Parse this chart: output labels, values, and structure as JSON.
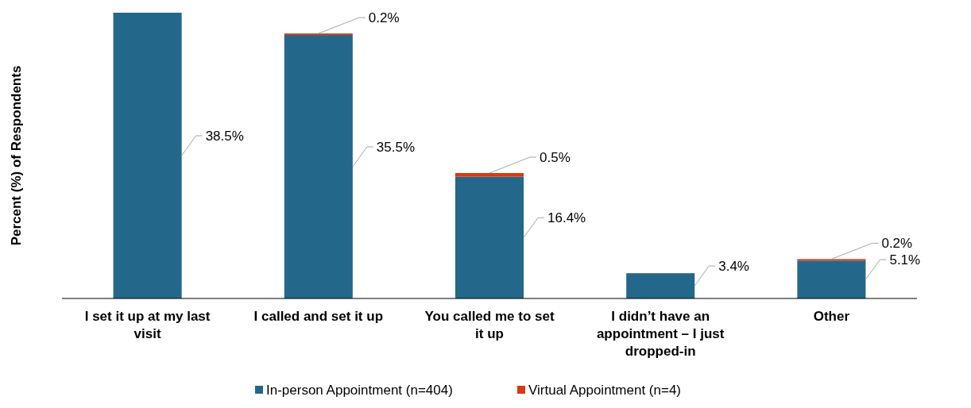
{
  "chart_data": {
    "type": "bar",
    "stacked": true,
    "ylabel": "Percent (%) of Respondents",
    "categories": [
      "I set it up at my last visit",
      "I called and set it up",
      "You called me to set it up",
      "I didn’t have an appointment – I just dropped-in",
      "Other"
    ],
    "series": [
      {
        "name": "In-person Appointment (n=404)",
        "color": "#23688a",
        "values": [
          38.5,
          35.5,
          16.4,
          3.4,
          5.1
        ],
        "value_labels": [
          "38.5%",
          "35.5%",
          "16.4%",
          "3.4%",
          "5.1%"
        ]
      },
      {
        "name": "Virtual Appointment (n=4)",
        "color": "#d83a12",
        "values": [
          null,
          0.2,
          0.5,
          null,
          0.2
        ],
        "value_labels": [
          null,
          "0.2%",
          "0.5%",
          null,
          "0.2%"
        ]
      }
    ],
    "legend": "bottom"
  }
}
